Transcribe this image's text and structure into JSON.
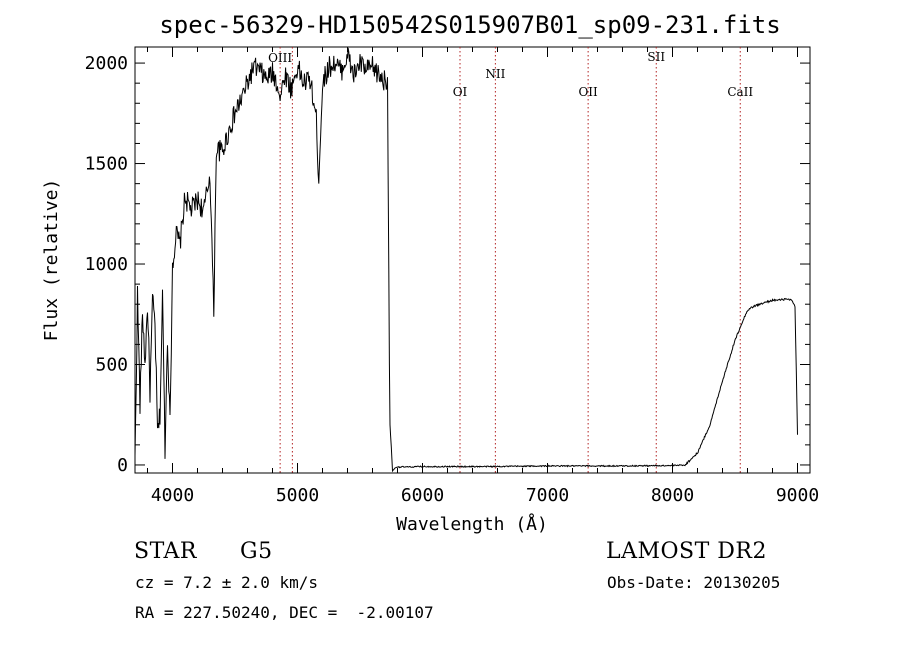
{
  "chart_data": {
    "type": "line",
    "title": "spec-56329-HD150542S015907B01_sp09-231.fits",
    "xlabel": "Wavelength (Å)",
    "ylabel": "Flux (relative)",
    "xlim": [
      3700,
      9100
    ],
    "ylim": [
      -40,
      2080
    ],
    "xticks": [
      4000,
      5000,
      6000,
      7000,
      8000,
      9000
    ],
    "yticks": [
      0,
      500,
      1000,
      1500,
      2000
    ],
    "grid": false,
    "line_color": "#000000",
    "marker_color": "#b22222",
    "series": [
      {
        "x": [
          3700,
          3720,
          3740,
          3760,
          3780,
          3800,
          3820,
          3840,
          3860,
          3880,
          3900,
          3920,
          3940,
          3960,
          3980,
          4000,
          4030,
          4060,
          4100,
          4150,
          4200,
          4250,
          4300,
          4330,
          4350,
          4400,
          4450,
          4500,
          4550,
          4600,
          4650,
          4700,
          4750,
          4800,
          4850,
          4861,
          4900,
          4950,
          5000,
          5050,
          5100,
          5150,
          5170,
          5200,
          5250,
          5300,
          5350,
          5400,
          5450,
          5500,
          5550,
          5600,
          5650,
          5700,
          5720,
          5735,
          5740,
          5750,
          5760,
          5780,
          5800,
          5900,
          6000,
          6500,
          7000,
          7500,
          8000,
          8100,
          8200,
          8300,
          8400,
          8500,
          8550,
          8600,
          8650,
          8700,
          8750,
          8800,
          8850,
          8900,
          8950,
          8980,
          9000
        ],
        "y": [
          20,
          850,
          300,
          760,
          500,
          800,
          360,
          820,
          700,
          160,
          250,
          850,
          80,
          640,
          200,
          1000,
          1150,
          1100,
          1330,
          1270,
          1320,
          1260,
          1450,
          760,
          1570,
          1560,
          1660,
          1750,
          1820,
          1900,
          1980,
          1960,
          1920,
          1950,
          1880,
          1820,
          1950,
          1870,
          1980,
          1900,
          1920,
          1720,
          1420,
          1900,
          1980,
          2000,
          1960,
          2040,
          1940,
          2000,
          1960,
          1980,
          1940,
          1910,
          1930,
          500,
          200,
          90,
          -30,
          -15,
          -10,
          -10,
          -8,
          -8,
          -5,
          -5,
          -3,
          0,
          60,
          200,
          420,
          620,
          700,
          770,
          790,
          800,
          810,
          820,
          820,
          825,
          820,
          790,
          150
        ]
      }
    ],
    "lines": [
      {
        "label": "OIII",
        "x": 4861
      },
      {
        "label": "",
        "x": 4959
      },
      {
        "label": "OI",
        "x": 6300
      },
      {
        "label": "NII",
        "x": 6583
      },
      {
        "label": "OII",
        "x": 7325
      },
      {
        "label": "SII",
        "x": 7870
      },
      {
        "label": "CaII",
        "x": 8542
      }
    ]
  },
  "info": {
    "object_class": "STAR",
    "subclass": "G5",
    "survey": "LAMOST DR2",
    "redshift": "cz = 7.2 ± 2.0 km/s",
    "obs_date": "Obs-Date: 20130205",
    "coords": "RA = 227.50240, DEC =  -2.00107"
  }
}
